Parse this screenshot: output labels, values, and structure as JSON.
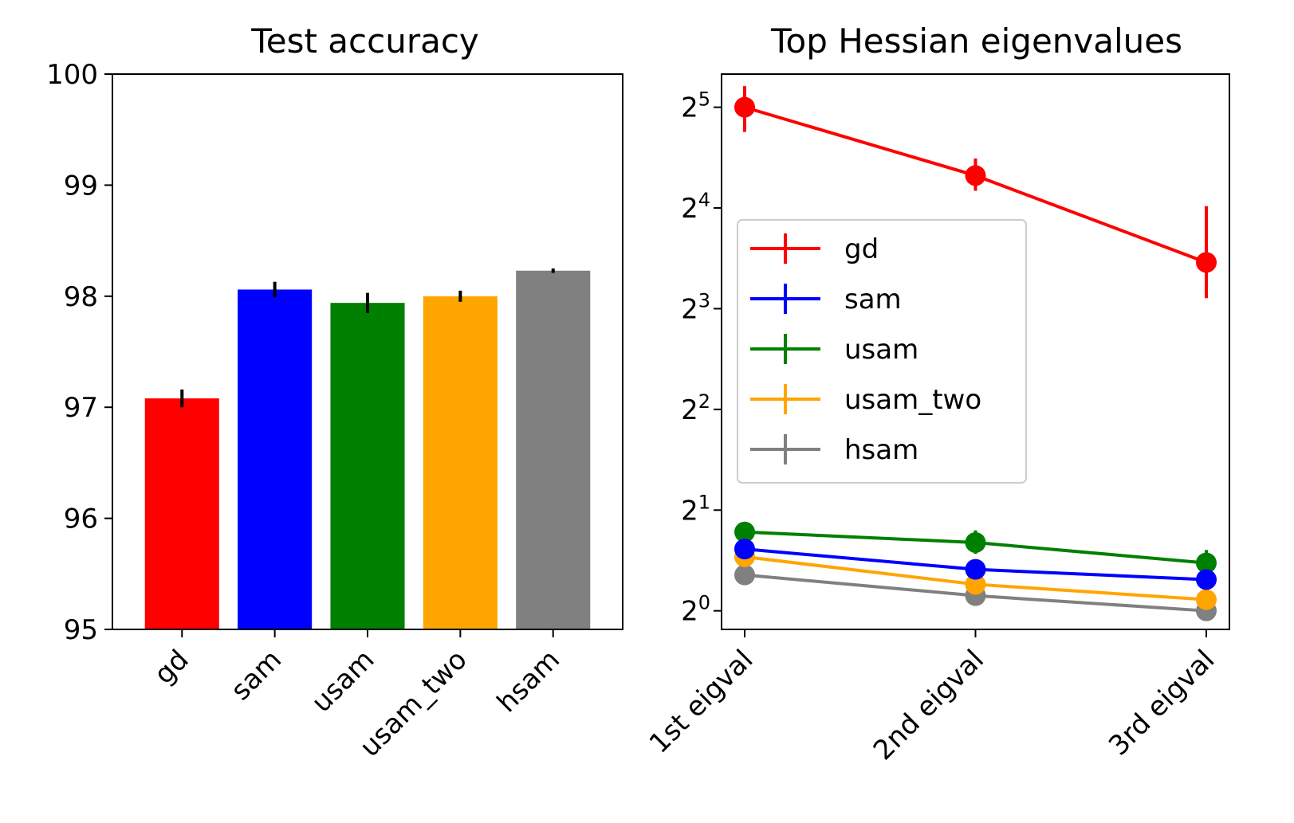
{
  "chart_data": [
    {
      "type": "bar",
      "title": "Test accuracy",
      "xlabel": "",
      "ylabel": "",
      "categories": [
        "gd",
        "sam",
        "usam",
        "usam_two",
        "hsam"
      ],
      "values": [
        97.08,
        98.06,
        97.94,
        98.0,
        98.23
      ],
      "errors": [
        0.08,
        0.07,
        0.09,
        0.05,
        0.02
      ],
      "colors": [
        "#ff0000",
        "#0000ff",
        "#008000",
        "#ffa500",
        "#808080"
      ],
      "ylim": [
        95,
        100
      ],
      "yticks": [
        "95",
        "96",
        "97",
        "98",
        "99",
        "100"
      ],
      "grid": false
    },
    {
      "type": "line",
      "title": "Top Hessian eigenvalues",
      "xlabel": "",
      "ylabel": "",
      "yscale": "log2",
      "categories": [
        "1st eigval",
        "2nd eigval",
        "3rd eigval"
      ],
      "yticks": [
        {
          "base": "2",
          "exp": "0"
        },
        {
          "base": "2",
          "exp": "1"
        },
        {
          "base": "2",
          "exp": "2"
        },
        {
          "base": "2",
          "exp": "3"
        },
        {
          "base": "2",
          "exp": "4"
        },
        {
          "base": "2",
          "exp": "5"
        }
      ],
      "ylim": [
        0.88,
        40.2
      ],
      "legend_position": "center-left",
      "grid": false,
      "series": [
        {
          "name": "gd",
          "color": "#ff0000",
          "values": [
            32.0,
            20.0,
            11.0
          ],
          "errors": [
            [
              27.0,
              37.0
            ],
            [
              18.0,
              22.5
            ],
            [
              8.6,
              16.2
            ]
          ]
        },
        {
          "name": "sam",
          "color": "#0000ff",
          "values": [
            1.53,
            1.33,
            1.24
          ],
          "errors": [
            [
              1.49,
              1.57
            ],
            [
              1.3,
              1.37
            ],
            [
              1.21,
              1.27
            ]
          ]
        },
        {
          "name": "usam",
          "color": "#008000",
          "values": [
            1.72,
            1.6,
            1.39
          ],
          "errors": [
            [
              1.64,
              1.8
            ],
            [
              1.48,
              1.74
            ],
            [
              1.28,
              1.52
            ]
          ]
        },
        {
          "name": "usam_two",
          "color": "#ffa500",
          "values": [
            1.45,
            1.2,
            1.08
          ],
          "errors": [
            [
              1.42,
              1.48
            ],
            [
              1.17,
              1.23
            ],
            [
              1.06,
              1.1
            ]
          ]
        },
        {
          "name": "hsam",
          "color": "#808080",
          "values": [
            1.28,
            1.11,
            1.0
          ],
          "errors": [
            [
              1.26,
              1.3
            ],
            [
              1.09,
              1.13
            ],
            [
              0.98,
              1.02
            ]
          ]
        }
      ]
    }
  ]
}
